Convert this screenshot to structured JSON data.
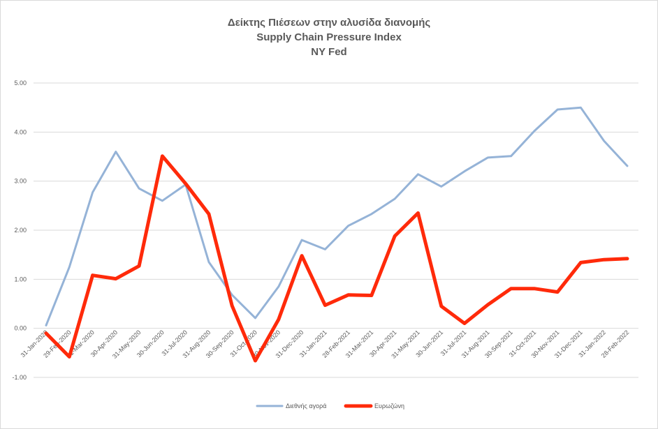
{
  "chart_data": {
    "type": "line",
    "title_lines": [
      "Δείκτης Πιέσεων στην αλυσίδα διανομής",
      "Supply Chain Pressure Index",
      "NY Fed"
    ],
    "xlabel": "",
    "ylabel": "",
    "ylim": [
      -1.0,
      5.0
    ],
    "yticks": [
      "-1.00",
      "0.00",
      "1.00",
      "2.00",
      "3.00",
      "4.00",
      "5.00"
    ],
    "grid": "horizontal",
    "legend_position": "bottom",
    "categories": [
      "31-Jan-2020",
      "29-Feb-2020",
      "31-Mar-2020",
      "30-Apr-2020",
      "31-May-2020",
      "30-Jun-2020",
      "31-Jul-2020",
      "31-Aug-2020",
      "30-Sep-2020",
      "31-Oct-2020",
      "30-Nov-2020",
      "31-Dec-2020",
      "31-Jan-2021",
      "28-Feb-2021",
      "31-Mar-2021",
      "30-Apr-2021",
      "31-May-2021",
      "30-Jun-2021",
      "31-Jul-2021",
      "31-Aug-2021",
      "30-Sep-2021",
      "31-Oct-2021",
      "30-Nov-2021",
      "31-Dec-2021",
      "31-Jan-2022",
      "28-Feb-2022"
    ],
    "series": [
      {
        "name": "Διεθνής αγορά",
        "color": "#95b3d7",
        "values": [
          0.06,
          1.25,
          2.77,
          3.6,
          2.85,
          2.6,
          2.93,
          1.35,
          0.68,
          0.21,
          0.85,
          1.8,
          1.61,
          2.09,
          2.33,
          2.64,
          3.14,
          2.89,
          3.2,
          3.48,
          3.51,
          4.02,
          4.46,
          4.5,
          3.82,
          3.31
        ]
      },
      {
        "name": "Ευρωζώνη",
        "color": "#ff2a0a",
        "values": [
          -0.1,
          -0.58,
          1.08,
          1.01,
          1.27,
          3.51,
          2.95,
          2.33,
          0.46,
          -0.66,
          0.18,
          1.48,
          0.47,
          0.68,
          0.67,
          1.88,
          2.35,
          0.45,
          0.1,
          0.48,
          0.81,
          0.81,
          0.74,
          1.34,
          1.4,
          1.42
        ]
      }
    ]
  }
}
